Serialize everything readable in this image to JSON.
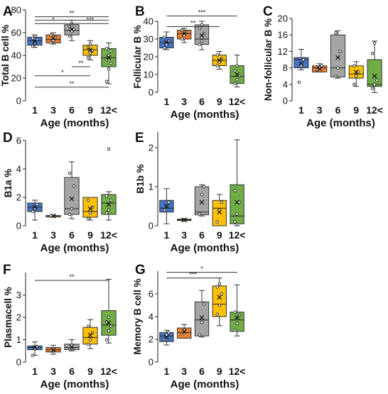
{
  "figure": {
    "categories": [
      "1",
      "3",
      "6",
      "9",
      "12<"
    ],
    "colors": [
      "#4472C4",
      "#ED7D31",
      "#A5A5A5",
      "#FFC000",
      "#70AD47"
    ]
  },
  "chart_data": [
    {
      "panel": "A",
      "type": "box",
      "xlabel": "Age (months)",
      "ylabel": "Total B cell %",
      "ylim": [
        0,
        80
      ],
      "yticks": [
        0,
        20,
        40,
        60,
        80
      ],
      "boxes": [
        {
          "whisker_low": 47,
          "q1": 49,
          "median": 53,
          "q3": 56,
          "whisker_high": 58,
          "mean": 52,
          "points": [
            48,
            51,
            54,
            55,
            57
          ]
        },
        {
          "whisker_low": 50,
          "q1": 51,
          "median": 54,
          "q3": 58,
          "whisker_high": 60,
          "mean": 55,
          "points": [
            51,
            53,
            56,
            58
          ]
        },
        {
          "whisker_low": 53,
          "q1": 58,
          "median": 62,
          "q3": 67,
          "whisker_high": 71,
          "mean": 63,
          "points": [
            57,
            61,
            63,
            65,
            68
          ]
        },
        {
          "whisker_low": 36,
          "q1": 40,
          "median": 45,
          "q3": 49,
          "whisker_high": 53,
          "mean": 45,
          "points": [
            38,
            42,
            44,
            47,
            50
          ]
        },
        {
          "whisker_low": 15,
          "q1": 30,
          "median": 38,
          "q3": 46,
          "whisker_high": 51,
          "mean": 38,
          "points": [
            17,
            28,
            33,
            36,
            40,
            44,
            46
          ]
        }
      ],
      "significance": [
        {
          "from": 0,
          "to": 4,
          "y": 74,
          "label": "**"
        },
        {
          "from": 0,
          "to": 2,
          "y": 68,
          "label": "*"
        },
        {
          "from": 0,
          "to": 4,
          "y": 71,
          "label": ""
        },
        {
          "from": 2,
          "to": 4,
          "y": 68,
          "label": "***"
        },
        {
          "from": 2,
          "to": 3,
          "y": 30,
          "label": "**"
        },
        {
          "from": 0,
          "to": 3,
          "y": 22,
          "label": "*"
        },
        {
          "from": 0,
          "to": 4,
          "y": 12,
          "label": "**"
        }
      ]
    },
    {
      "panel": "B",
      "type": "box",
      "xlabel": "Age (months)",
      "ylabel": "Follicular B %",
      "ylim": [
        0,
        40
      ],
      "yticks": [
        0,
        10,
        20,
        30,
        40
      ],
      "boxes": [
        {
          "whisker_low": 24,
          "q1": 25,
          "median": 28,
          "q3": 31,
          "whisker_high": 34,
          "mean": 28,
          "points": [
            25,
            27,
            29,
            31
          ]
        },
        {
          "whisker_low": 28,
          "q1": 30,
          "median": 33,
          "q3": 35,
          "whisker_high": 36,
          "mean": 33,
          "points": [
            30,
            32,
            34,
            35
          ]
        },
        {
          "whisker_low": 24,
          "q1": 27,
          "median": 30,
          "q3": 38,
          "whisker_high": 40,
          "mean": 32,
          "points": [
            27,
            29,
            33,
            36,
            38
          ]
        },
        {
          "whisker_low": 13,
          "q1": 15,
          "median": 18,
          "q3": 21,
          "whisker_high": 23,
          "mean": 18,
          "points": [
            15,
            17,
            19,
            21
          ]
        },
        {
          "whisker_low": 3,
          "q1": 5,
          "median": 9,
          "q3": 15,
          "whisker_high": 21,
          "mean": 10,
          "points": [
            5,
            7,
            9,
            12,
            15
          ]
        }
      ],
      "significance": [
        {
          "from": 0,
          "to": 4,
          "y": 43,
          "label": "***"
        },
        {
          "from": 0,
          "to": 3,
          "y": 37,
          "label": "**"
        }
      ]
    },
    {
      "panel": "C",
      "type": "box",
      "xlabel": "Age (months)",
      "ylabel": "Non-follicular B %",
      "ylim": [
        0,
        20
      ],
      "yticks": [
        0,
        4,
        8,
        12,
        16,
        20
      ],
      "boxes": [
        {
          "whisker_low": 7.5,
          "q1": 8,
          "median": 10,
          "q3": 10.5,
          "whisker_high": 12.5,
          "mean": 9,
          "points": [
            4.5,
            8.5,
            10
          ]
        },
        {
          "whisker_low": 7,
          "q1": 7,
          "median": 8,
          "q3": 8.5,
          "whisker_high": 9,
          "mean": 7.8,
          "points": [
            7.5,
            8,
            8.5
          ]
        },
        {
          "whisker_low": 5.5,
          "q1": 5.8,
          "median": 8,
          "q3": 16,
          "whisker_high": 17,
          "mean": 10.5,
          "points": [
            6,
            8,
            12,
            16.5
          ]
        },
        {
          "whisker_low": 3.5,
          "q1": 5.5,
          "median": 6.5,
          "q3": 8.5,
          "whisker_high": 9.5,
          "mean": 7,
          "points": [
            4,
            6,
            7,
            8.5
          ]
        },
        {
          "whisker_low": 2,
          "q1": 3.5,
          "median": 4,
          "q3": 10,
          "whisker_high": 14.5,
          "mean": 6,
          "points": [
            3,
            4,
            5,
            11.5,
            14
          ]
        }
      ],
      "significance": []
    },
    {
      "panel": "D",
      "type": "box",
      "xlabel": "Age (months)",
      "ylabel": "B1a %",
      "ylim": [
        0,
        6
      ],
      "yticks": [
        0,
        2,
        4,
        6
      ],
      "boxes": [
        {
          "whisker_low": 0.4,
          "q1": 1.0,
          "median": 1.3,
          "q3": 1.6,
          "whisker_high": 1.8,
          "mean": 1.3,
          "points": [
            1.0,
            1.2,
            1.5
          ]
        },
        {
          "whisker_low": 0.6,
          "q1": 0.65,
          "median": 0.7,
          "q3": 0.72,
          "whisker_high": 0.75,
          "mean": 0.7,
          "points": [
            0.7
          ]
        },
        {
          "whisker_low": 0.5,
          "q1": 0.8,
          "median": 1.2,
          "q3": 3.4,
          "whisker_high": 4.5,
          "mean": 1.9,
          "points": [
            0.8,
            1.2,
            2.8,
            3.7
          ]
        },
        {
          "whisker_low": 0.4,
          "q1": 0.6,
          "median": 1.0,
          "q3": 2.0,
          "whisker_high": 2.0,
          "mean": 1.2,
          "points": [
            0.5,
            0.9,
            1.3,
            1.8
          ]
        },
        {
          "whisker_low": 0.4,
          "q1": 0.8,
          "median": 1.6,
          "q3": 2.2,
          "whisker_high": 2.4,
          "mean": 1.5,
          "points": [
            0.9,
            1.1,
            1.8,
            2.1,
            5.4
          ]
        }
      ],
      "significance": []
    },
    {
      "panel": "E",
      "type": "box",
      "xlabel": "Age (months)",
      "ylabel": "B1b %",
      "ylim": [
        0,
        2.4
      ],
      "yticks": [
        0,
        1,
        2
      ],
      "boxes": [
        {
          "whisker_low": 0.05,
          "q1": 0.35,
          "median": 0.45,
          "q3": 0.65,
          "whisker_high": 0.95,
          "mean": 0.5,
          "points": [
            0.4,
            0.5,
            0.6
          ]
        },
        {
          "whisker_low": 0.12,
          "q1": 0.14,
          "median": 0.15,
          "q3": 0.17,
          "whisker_high": 0.18,
          "mean": 0.15,
          "points": []
        },
        {
          "whisker_low": 0.25,
          "q1": 0.28,
          "median": 0.35,
          "q3": 1.0,
          "whisker_high": 1.05,
          "mean": 0.6,
          "points": [
            0.3,
            0.8,
            1.0
          ]
        },
        {
          "whisker_low": 0.0,
          "q1": 0.0,
          "median": 0.45,
          "q3": 0.65,
          "whisker_high": 0.8,
          "mean": 0.35,
          "points": [
            0.1,
            0.4,
            0.6
          ]
        },
        {
          "whisker_low": 0.0,
          "q1": 0.05,
          "median": 0.25,
          "q3": 1.05,
          "whisker_high": 2.2,
          "mean": 0.6,
          "points": [
            0.1,
            0.3,
            0.6,
            0.9
          ]
        }
      ],
      "significance": []
    },
    {
      "panel": "F",
      "type": "box",
      "xlabel": "Age (months)",
      "ylabel": "Plasmacell %",
      "ylim": [
        0,
        4
      ],
      "yticks": [
        0,
        1,
        2,
        3
      ],
      "boxes": [
        {
          "whisker_low": 0.3,
          "q1": 0.55,
          "median": 0.65,
          "q3": 0.72,
          "whisker_high": 0.9,
          "mean": 0.65,
          "points": [
            0.3,
            0.6,
            0.7
          ]
        },
        {
          "whisker_low": 0.35,
          "q1": 0.45,
          "median": 0.55,
          "q3": 0.65,
          "whisker_high": 0.75,
          "mean": 0.55,
          "points": [
            0.5,
            0.6
          ]
        },
        {
          "whisker_low": 0.5,
          "q1": 0.55,
          "median": 0.65,
          "q3": 0.8,
          "whisker_high": 1.0,
          "mean": 0.68,
          "points": [
            0.6,
            0.75
          ]
        },
        {
          "whisker_low": 0.6,
          "q1": 0.8,
          "median": 1.1,
          "q3": 1.55,
          "whisker_high": 1.9,
          "mean": 1.2,
          "points": [
            0.8,
            1.0,
            1.3,
            1.6
          ]
        },
        {
          "whisker_low": 0.85,
          "q1": 1.2,
          "median": 1.65,
          "q3": 2.3,
          "whisker_high": 3.7,
          "mean": 1.75,
          "points": [
            1.0,
            1.4,
            1.6,
            1.8,
            2.0
          ]
        }
      ],
      "significance": [
        {
          "from": 0,
          "to": 4,
          "y": 3.65,
          "label": "**"
        }
      ]
    },
    {
      "panel": "G",
      "type": "box",
      "xlabel": "Age (months)",
      "ylabel": "Memory B cell %",
      "ylim": [
        0,
        8
      ],
      "yticks": [
        0,
        2,
        4,
        6
      ],
      "boxes": [
        {
          "whisker_low": 1.5,
          "q1": 1.8,
          "median": 2.3,
          "q3": 2.6,
          "whisker_high": 2.8,
          "mean": 2.2,
          "points": [
            2.0,
            2.4,
            2.6
          ]
        },
        {
          "whisker_low": 2.1,
          "q1": 2.1,
          "median": 2.6,
          "q3": 3.0,
          "whisker_high": 3.3,
          "mean": 2.7,
          "points": [
            2.5,
            2.8
          ]
        },
        {
          "whisker_low": 2.2,
          "q1": 2.3,
          "median": 3.7,
          "q3": 5.3,
          "whisker_high": 6.3,
          "mean": 3.9,
          "points": [
            2.4,
            3.5,
            5.1
          ]
        },
        {
          "whisker_low": 3.2,
          "q1": 4.0,
          "median": 5.1,
          "q3": 6.7,
          "whisker_high": 7.4,
          "mean": 5.7,
          "points": [
            4.2,
            5.0,
            6.0,
            6.6,
            6.9
          ]
        },
        {
          "whisker_low": 2.3,
          "q1": 2.7,
          "median": 3.7,
          "q3": 4.4,
          "whisker_high": 6.8,
          "mean": 3.9,
          "points": [
            2.8,
            3.4,
            4.1,
            4.4
          ]
        }
      ],
      "significance": [
        {
          "from": 0,
          "to": 4,
          "y": 7.9,
          "label": "*"
        },
        {
          "from": 0,
          "to": 3,
          "y": 7.4,
          "label": "***"
        }
      ]
    }
  ]
}
